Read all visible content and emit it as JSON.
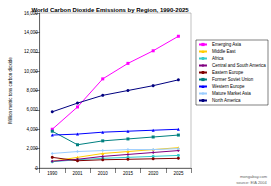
{
  "chart_data": {
    "type": "line",
    "title": "World Carbon Dioxide Emissions by Region, 1990-2025",
    "y_label": "Million metric tons carbon dioxide",
    "annotations": [
      "mongabay.com",
      "source: EIA 2004"
    ],
    "categories": [
      "1990",
      "2001",
      "2010",
      "2015",
      "2020",
      "2025"
    ],
    "ylim": [
      0,
      16000
    ],
    "yticks": [
      0,
      {
        "value": 2000,
        "label": "2,000"
      },
      {
        "value": 4000,
        "label": "4,000"
      },
      {
        "value": 6000,
        "label": "6,000"
      },
      {
        "value": 8000,
        "label": "8,000"
      },
      {
        "value": 10000,
        "label": "10,000"
      },
      {
        "value": 12000,
        "label": "12,000"
      },
      {
        "value": 14000,
        "label": "14,000"
      },
      {
        "value": 16000,
        "label": "16,000"
      }
    ],
    "grid": false,
    "legend": "right",
    "series": [
      {
        "name": "Emerging Asia",
        "color": "#ff00ff",
        "marker": "square",
        "values": [
          4000,
          6300,
          9200,
          10800,
          12100,
          13600
        ]
      },
      {
        "name": "Middle East",
        "color": "#ffcc00",
        "marker": "triangle",
        "values": [
          700,
          1100,
          1500,
          1700,
          1900,
          2100
        ]
      },
      {
        "name": "Africa",
        "color": "#33cccc",
        "marker": "circle",
        "values": [
          650,
          850,
          1000,
          1100,
          1200,
          1300
        ]
      },
      {
        "name": "Central and South America",
        "color": "#800080",
        "marker": "diamond",
        "values": [
          700,
          900,
          1200,
          1400,
          1600,
          1800
        ]
      },
      {
        "name": "Eastern Europe",
        "color": "#800000",
        "marker": "circle",
        "values": [
          1100,
          750,
          850,
          900,
          950,
          1000
        ]
      },
      {
        "name": "Former Soviet Union",
        "color": "#008080",
        "marker": "square",
        "values": [
          3800,
          2400,
          2800,
          3000,
          3200,
          3400
        ]
      },
      {
        "name": "Western Europe",
        "color": "#0000ff",
        "marker": "triangle",
        "values": [
          3400,
          3500,
          3700,
          3800,
          3900,
          4000
        ]
      },
      {
        "name": "Mature Market Asia",
        "color": "#99ccff",
        "marker": "diamond",
        "values": [
          1500,
          1700,
          1800,
          1900,
          1900,
          2000
        ]
      },
      {
        "name": "North America",
        "color": "#000080",
        "marker": "circle",
        "values": [
          5800,
          6700,
          7500,
          8000,
          8500,
          9100
        ]
      }
    ]
  }
}
